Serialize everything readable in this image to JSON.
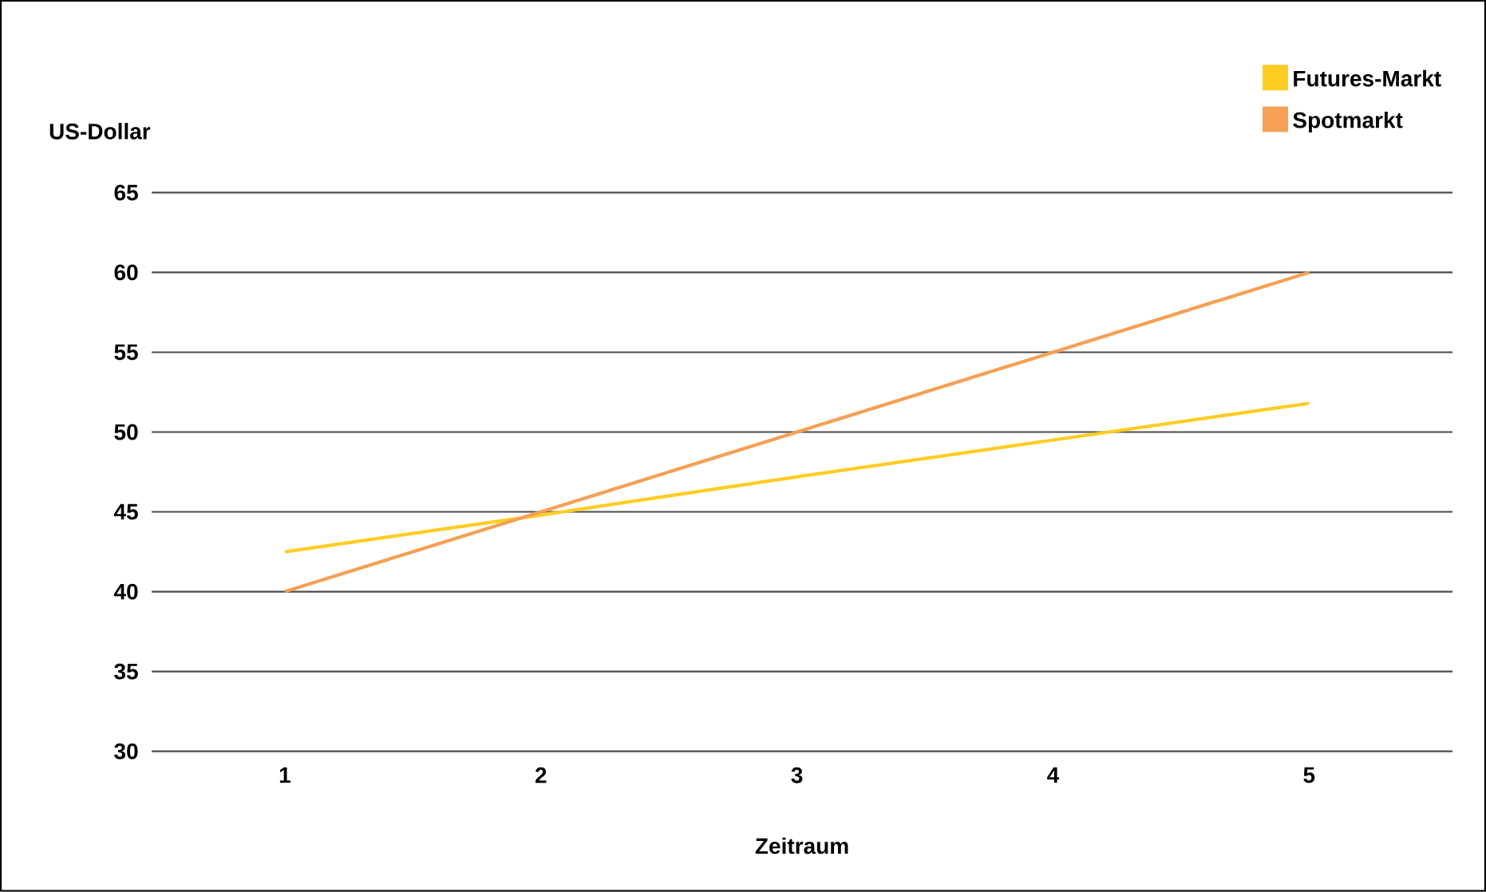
{
  "chart_data": {
    "type": "line",
    "xlabel": "Zeitraum",
    "ylabel": "US-Dollar",
    "categories": [
      "1",
      "2",
      "3",
      "4",
      "5"
    ],
    "series": [
      {
        "name": "Futures-Markt",
        "color": "#ffcc22",
        "values": [
          42.5,
          44.8,
          47.2,
          49.5,
          51.8
        ]
      },
      {
        "name": "Spotmarkt",
        "color": "#f5a055",
        "values": [
          40,
          45,
          50,
          55,
          60
        ]
      }
    ],
    "ylim": [
      30,
      65
    ],
    "yticks": [
      30,
      35,
      40,
      45,
      50,
      55,
      60,
      65
    ],
    "grid": "y",
    "legend": "top right"
  }
}
